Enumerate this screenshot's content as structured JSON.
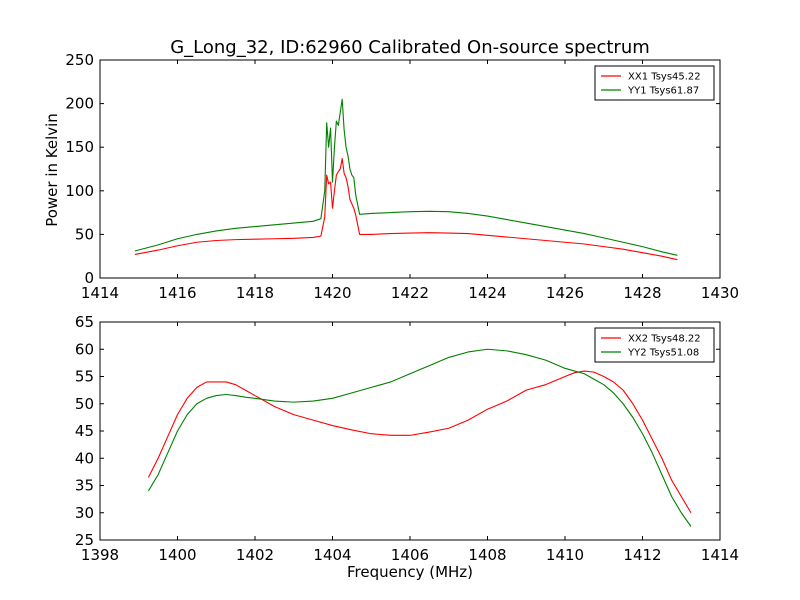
{
  "chart_data": [
    {
      "type": "line",
      "title": "G_Long_32, ID:62960 Calibrated On-source spectrum",
      "xlabel": "",
      "ylabel": "Power in Kelvin",
      "xlim": [
        1414,
        1430
      ],
      "ylim": [
        0,
        250
      ],
      "xticks": [
        1414,
        1416,
        1418,
        1420,
        1422,
        1424,
        1426,
        1428,
        1430
      ],
      "yticks": [
        0,
        50,
        100,
        150,
        200,
        250
      ],
      "grid": false,
      "legend_position": "top-right",
      "series": [
        {
          "name": "XX1 Tsys45.22",
          "color": "#ff0000",
          "x": [
            1414.9,
            1415.5,
            1416,
            1416.5,
            1417,
            1417.5,
            1418,
            1418.5,
            1419,
            1419.5,
            1419.7,
            1419.8,
            1419.85,
            1419.9,
            1419.95,
            1420.0,
            1420.05,
            1420.1,
            1420.15,
            1420.2,
            1420.25,
            1420.3,
            1420.35,
            1420.4,
            1420.45,
            1420.5,
            1420.55,
            1420.6,
            1420.7,
            1421,
            1421.5,
            1422,
            1422.5,
            1423,
            1423.5,
            1424,
            1424.5,
            1425,
            1425.5,
            1426,
            1426.5,
            1427,
            1427.5,
            1428,
            1428.5,
            1428.9
          ],
          "values": [
            27,
            32,
            37,
            41,
            43,
            44,
            44.5,
            45,
            45.5,
            46.5,
            48,
            70,
            118,
            108,
            110,
            80,
            100,
            118,
            122,
            125,
            137,
            120,
            115,
            105,
            90,
            85,
            80,
            72,
            50,
            50,
            51,
            51.5,
            52,
            51.5,
            51,
            49,
            47,
            45,
            43,
            41,
            39,
            36,
            33,
            29,
            25,
            21
          ]
        },
        {
          "name": "YY1 Tsys61.87",
          "color": "#008000",
          "x": [
            1414.9,
            1415.5,
            1416,
            1416.5,
            1417,
            1417.5,
            1418,
            1418.5,
            1419,
            1419.5,
            1419.7,
            1419.8,
            1419.85,
            1419.9,
            1419.95,
            1420.0,
            1420.05,
            1420.1,
            1420.15,
            1420.2,
            1420.25,
            1420.3,
            1420.35,
            1420.4,
            1420.45,
            1420.5,
            1420.55,
            1420.6,
            1420.7,
            1421,
            1421.5,
            1422,
            1422.5,
            1423,
            1423.5,
            1424,
            1424.5,
            1425,
            1425.5,
            1426,
            1426.5,
            1427,
            1427.5,
            1428,
            1428.5,
            1428.9
          ],
          "values": [
            31,
            38,
            45,
            50,
            54,
            57,
            59,
            61,
            63,
            65,
            68,
            100,
            178,
            150,
            172,
            110,
            150,
            180,
            175,
            190,
            205,
            170,
            150,
            140,
            125,
            118,
            115,
            95,
            73,
            74,
            75,
            76,
            76.5,
            76,
            74,
            71,
            67,
            63,
            59,
            55,
            51,
            46,
            41,
            36,
            30,
            26
          ]
        }
      ]
    },
    {
      "type": "line",
      "title": "",
      "xlabel": "Frequency (MHz)",
      "ylabel": "",
      "xlim": [
        1398,
        1414
      ],
      "ylim": [
        25,
        65
      ],
      "xticks": [
        1398,
        1400,
        1402,
        1404,
        1406,
        1408,
        1410,
        1412,
        1414
      ],
      "yticks": [
        25,
        30,
        35,
        40,
        45,
        50,
        55,
        60,
        65
      ],
      "grid": false,
      "legend_position": "top-right",
      "series": [
        {
          "name": "XX2 Tsys48.22",
          "color": "#ff0000",
          "x": [
            1399.25,
            1399.5,
            1399.75,
            1400,
            1400.25,
            1400.5,
            1400.75,
            1401,
            1401.25,
            1401.5,
            1401.75,
            1402,
            1402.5,
            1403,
            1403.5,
            1404,
            1404.5,
            1405,
            1405.5,
            1406,
            1406.5,
            1407,
            1407.5,
            1408,
            1408.5,
            1409,
            1409.5,
            1410,
            1410.25,
            1410.5,
            1410.75,
            1411,
            1411.25,
            1411.5,
            1411.75,
            1412,
            1412.25,
            1412.5,
            1412.75,
            1413,
            1413.25
          ],
          "values": [
            36.5,
            40,
            44,
            48,
            51,
            53,
            54,
            54,
            54,
            53.5,
            52.5,
            51.5,
            49.5,
            48,
            47,
            46,
            45.2,
            44.5,
            44.2,
            44.2,
            44.8,
            45.5,
            47,
            49,
            50.5,
            52.5,
            53.5,
            55,
            55.7,
            56,
            55.8,
            55,
            54,
            52.5,
            50,
            47,
            43.5,
            40,
            36,
            33,
            30
          ]
        },
        {
          "name": "YY2 Tsys51.08",
          "color": "#008000",
          "x": [
            1399.25,
            1399.5,
            1399.75,
            1400,
            1400.25,
            1400.5,
            1400.75,
            1401,
            1401.25,
            1401.5,
            1401.75,
            1402,
            1402.5,
            1403,
            1403.5,
            1404,
            1404.5,
            1405,
            1405.5,
            1406,
            1406.5,
            1407,
            1407.5,
            1408,
            1408.5,
            1409,
            1409.5,
            1410,
            1410.25,
            1410.5,
            1410.75,
            1411,
            1411.25,
            1411.5,
            1411.75,
            1412,
            1412.25,
            1412.5,
            1412.75,
            1413,
            1413.25
          ],
          "values": [
            34,
            37,
            41,
            45,
            48,
            50,
            51,
            51.5,
            51.7,
            51.5,
            51.2,
            51,
            50.5,
            50.3,
            50.5,
            51,
            52,
            53,
            54,
            55.5,
            57,
            58.5,
            59.5,
            60,
            59.7,
            59,
            58,
            56.5,
            56,
            55.5,
            54.5,
            53.5,
            52,
            50,
            47.5,
            44.5,
            41,
            37,
            33,
            30,
            27.5
          ]
        }
      ]
    }
  ]
}
